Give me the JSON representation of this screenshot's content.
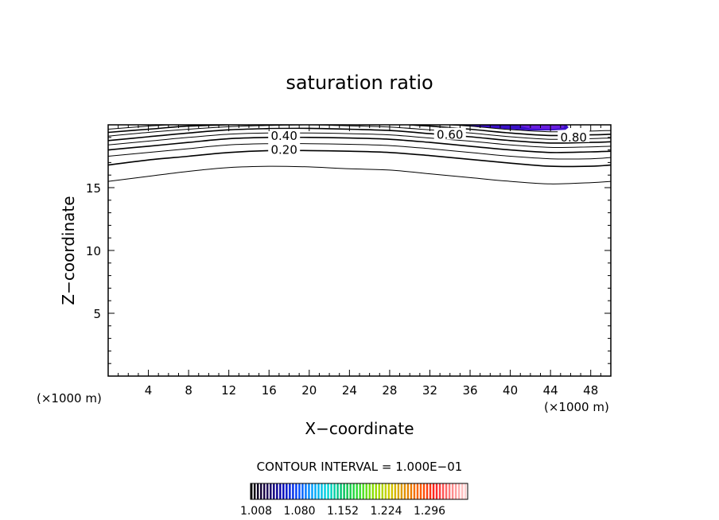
{
  "chart_data": {
    "type": "contour",
    "title": "saturation ratio",
    "xlabel": "X−coordinate",
    "ylabel": "Z−coordinate",
    "x_unit_left": "(×1000 m)",
    "x_unit_right": "(×1000 m)",
    "xlim": [
      0,
      50
    ],
    "ylim": [
      0,
      20
    ],
    "xticks": [
      4,
      8,
      12,
      16,
      20,
      24,
      28,
      32,
      36,
      40,
      44,
      48
    ],
    "yticks": [
      5,
      10,
      15
    ],
    "contour_interval_text": "CONTOUR INTERVAL = 1.000E−01",
    "contour_labels": [
      {
        "text": "0.20",
        "x": 17.5,
        "y": 18.0
      },
      {
        "text": "0.40",
        "x": 17.5,
        "y": 19.1
      },
      {
        "text": "0.60",
        "x": 34.0,
        "y": 19.2
      },
      {
        "text": "0.80",
        "x": 46.3,
        "y": 19.0
      }
    ],
    "contours": [
      {
        "level": 0.1,
        "points": [
          [
            0,
            15.5
          ],
          [
            4,
            15.9
          ],
          [
            8,
            16.3
          ],
          [
            12,
            16.6
          ],
          [
            16,
            16.7
          ],
          [
            20,
            16.65
          ],
          [
            24,
            16.5
          ],
          [
            28,
            16.4
          ],
          [
            32,
            16.1
          ],
          [
            36,
            15.8
          ],
          [
            40,
            15.5
          ],
          [
            44,
            15.3
          ],
          [
            48,
            15.4
          ],
          [
            50,
            15.5
          ]
        ]
      },
      {
        "level": 0.2,
        "points": [
          [
            0,
            16.8
          ],
          [
            4,
            17.2
          ],
          [
            8,
            17.5
          ],
          [
            12,
            17.8
          ],
          [
            16,
            17.95
          ],
          [
            20,
            17.95
          ],
          [
            24,
            17.9
          ],
          [
            28,
            17.8
          ],
          [
            32,
            17.55
          ],
          [
            36,
            17.25
          ],
          [
            40,
            16.95
          ],
          [
            44,
            16.7
          ],
          [
            48,
            16.7
          ],
          [
            50,
            16.8
          ]
        ]
      },
      {
        "level": 0.3,
        "points": [
          [
            0,
            17.5
          ],
          [
            4,
            17.8
          ],
          [
            8,
            18.1
          ],
          [
            12,
            18.4
          ],
          [
            16,
            18.5
          ],
          [
            20,
            18.5
          ],
          [
            24,
            18.45
          ],
          [
            28,
            18.35
          ],
          [
            32,
            18.1
          ],
          [
            36,
            17.8
          ],
          [
            40,
            17.5
          ],
          [
            44,
            17.3
          ],
          [
            48,
            17.3
          ],
          [
            50,
            17.4
          ]
        ]
      },
      {
        "level": 0.4,
        "points": [
          [
            0,
            18.0
          ],
          [
            4,
            18.3
          ],
          [
            8,
            18.6
          ],
          [
            12,
            18.9
          ],
          [
            16,
            19.0
          ],
          [
            20,
            19.0
          ],
          [
            24,
            18.95
          ],
          [
            28,
            18.85
          ],
          [
            32,
            18.6
          ],
          [
            36,
            18.3
          ],
          [
            40,
            18.0
          ],
          [
            44,
            17.8
          ],
          [
            48,
            17.85
          ],
          [
            50,
            17.9
          ]
        ]
      },
      {
        "level": 0.5,
        "points": [
          [
            0,
            18.4
          ],
          [
            4,
            18.7
          ],
          [
            8,
            19.0
          ],
          [
            12,
            19.25
          ],
          [
            16,
            19.35
          ],
          [
            20,
            19.35
          ],
          [
            24,
            19.3
          ],
          [
            28,
            19.2
          ],
          [
            32,
            18.95
          ],
          [
            36,
            18.7
          ],
          [
            40,
            18.4
          ],
          [
            44,
            18.2
          ],
          [
            48,
            18.25
          ],
          [
            50,
            18.3
          ]
        ]
      },
      {
        "level": 0.6,
        "points": [
          [
            0,
            18.75
          ],
          [
            4,
            19.05
          ],
          [
            8,
            19.35
          ],
          [
            12,
            19.6
          ],
          [
            16,
            19.7
          ],
          [
            20,
            19.72
          ],
          [
            24,
            19.65
          ],
          [
            28,
            19.55
          ],
          [
            32,
            19.3
          ],
          [
            36,
            19.05
          ],
          [
            40,
            18.75
          ],
          [
            44,
            18.55
          ],
          [
            48,
            18.6
          ],
          [
            50,
            18.65
          ]
        ]
      },
      {
        "level": 0.7,
        "points": [
          [
            0,
            19.1
          ],
          [
            4,
            19.4
          ],
          [
            8,
            19.65
          ],
          [
            12,
            19.85
          ],
          [
            16,
            19.95
          ],
          [
            20,
            20.0
          ],
          [
            24,
            19.92
          ],
          [
            28,
            19.82
          ],
          [
            32,
            19.6
          ],
          [
            36,
            19.35
          ],
          [
            40,
            19.05
          ],
          [
            44,
            18.85
          ],
          [
            48,
            18.9
          ],
          [
            50,
            18.95
          ]
        ]
      },
      {
        "level": 0.8,
        "points": [
          [
            0,
            19.4
          ],
          [
            4,
            19.65
          ],
          [
            8,
            19.9
          ],
          [
            12,
            20.0
          ]
        ]
      },
      {
        "level": 0.8,
        "points": [
          [
            30,
            20.0
          ],
          [
            32,
            19.9
          ],
          [
            36,
            19.65
          ],
          [
            40,
            19.35
          ],
          [
            44,
            19.15
          ],
          [
            48,
            19.2
          ],
          [
            50,
            19.25
          ]
        ]
      },
      {
        "level": 0.9,
        "points": [
          [
            0,
            19.65
          ],
          [
            4,
            19.9
          ],
          [
            6,
            20.0
          ]
        ]
      },
      {
        "level": 0.9,
        "points": [
          [
            34,
            20.0
          ],
          [
            36,
            19.9
          ],
          [
            40,
            19.62
          ],
          [
            44,
            19.45
          ],
          [
            48,
            19.5
          ],
          [
            50,
            19.55
          ]
        ]
      }
    ],
    "shaded_regions": [
      {
        "color": "#3a10c8",
        "points": [
          [
            35,
            20
          ],
          [
            36,
            19.9
          ],
          [
            38,
            19.75
          ],
          [
            40,
            19.65
          ],
          [
            42,
            19.55
          ],
          [
            44,
            19.55
          ],
          [
            45.5,
            19.6
          ],
          [
            45.8,
            19.8
          ],
          [
            45.6,
            20
          ]
        ]
      },
      {
        "color": "#6a1ee0",
        "points": [
          [
            40.5,
            20
          ],
          [
            42,
            19.7
          ],
          [
            44,
            19.65
          ],
          [
            45.3,
            19.75
          ],
          [
            45.4,
            20
          ]
        ]
      }
    ],
    "colorbar": {
      "ticks": [
        "1.008",
        "1.080",
        "1.152",
        "1.224",
        "1.296"
      ],
      "colors": [
        "#000000",
        "#1a0050",
        "#0000b4",
        "#0040ff",
        "#00a0ff",
        "#00d8d8",
        "#00c060",
        "#30e030",
        "#90e000",
        "#d0d000",
        "#e09000",
        "#ff6000",
        "#ff2020",
        "#ff8080",
        "#ffd0d0"
      ]
    }
  }
}
